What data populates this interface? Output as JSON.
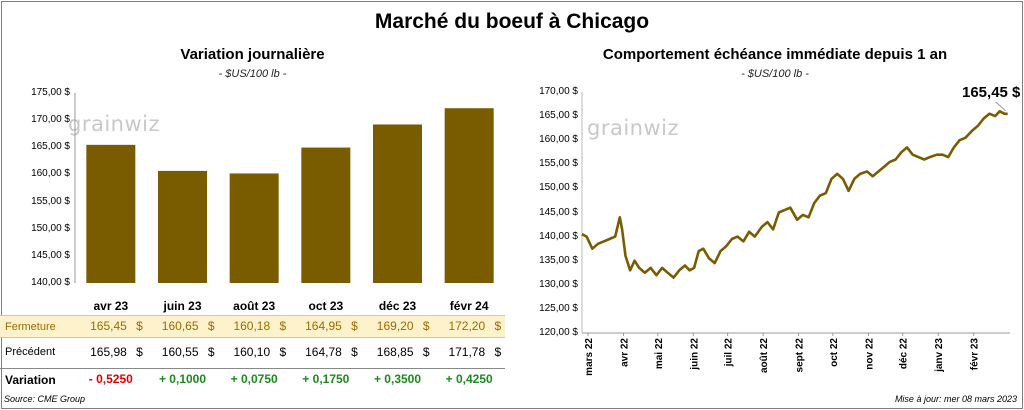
{
  "title": "Marché du boeuf à Chicago",
  "watermark": "grainwiz",
  "left": {
    "subtitle": "Variation  journalière",
    "unit": "- $US/100 lb -",
    "row_labels": {
      "close": "Fermeture",
      "prev": "Précédent",
      "change": "Variation"
    },
    "currency": "$",
    "table": {
      "close": [
        "165,45",
        "160,65",
        "160,18",
        "164,95",
        "169,20",
        "172,20"
      ],
      "prev": [
        "165,98",
        "160,55",
        "160,10",
        "164,78",
        "168,85",
        "171,78"
      ],
      "change": [
        "- 0,5250",
        "+ 0,1000",
        "+ 0,0750",
        "+ 0,1750",
        "+ 0,3500",
        "+ 0,4250"
      ]
    },
    "source": "Source: CME Group"
  },
  "right": {
    "subtitle": "Comportement  échéance immédiate depuis 1 an",
    "unit": "- $US/100 lb -",
    "last_value_label": "165,45 $",
    "update": "Mise à jour: mer 08 mars 2023"
  },
  "colors": {
    "bar": "#7a5c00",
    "line": "#7a5c00",
    "highlight_row": "#fdf2cc",
    "negative": "#e00000",
    "positive": "#1a8a1a"
  },
  "chart_data": [
    {
      "type": "bar",
      "title": "Variation  journalière",
      "categories": [
        "avr 23",
        "juin 23",
        "août 23",
        "oct 23",
        "déc 23",
        "févr 24"
      ],
      "values": [
        165.45,
        160.65,
        160.18,
        164.95,
        169.2,
        172.2
      ],
      "ylim": [
        140,
        175
      ],
      "yticks": [
        "140,00 $",
        "145,00 $",
        "150,00 $",
        "155,00 $",
        "160,00 $",
        "165,00 $",
        "170,00 $",
        "175,00 $"
      ]
    },
    {
      "type": "line",
      "title": "Comportement  échéance immédiate depuis 1 an",
      "ylim": [
        120,
        170
      ],
      "yticks": [
        "120,00 $",
        "125,00 $",
        "130,00 $",
        "135,00 $",
        "140,00 $",
        "145,00 $",
        "150,00 $",
        "155,00 $",
        "160,00 $",
        "165,00 $",
        "170,00 $"
      ],
      "xticks": [
        "mars 22",
        "avr 22",
        "mai 22",
        "juin 22",
        "juil 22",
        "août 22",
        "sept 22",
        "oct 22",
        "nov 22",
        "déc 22",
        "janv 23",
        "févr 23"
      ],
      "x": [
        "2022-03-01",
        "2022-03-05",
        "2022-03-10",
        "2022-03-15",
        "2022-03-20",
        "2022-03-25",
        "2022-03-30",
        "2022-04-03",
        "2022-04-05",
        "2022-04-08",
        "2022-04-12",
        "2022-04-16",
        "2022-04-20",
        "2022-04-25",
        "2022-04-30",
        "2022-05-05",
        "2022-05-10",
        "2022-05-15",
        "2022-05-20",
        "2022-05-25",
        "2022-05-30",
        "2022-06-03",
        "2022-06-07",
        "2022-06-11",
        "2022-06-15",
        "2022-06-20",
        "2022-06-25",
        "2022-06-30",
        "2022-07-05",
        "2022-07-10",
        "2022-07-15",
        "2022-07-20",
        "2022-07-25",
        "2022-07-30",
        "2022-08-05",
        "2022-08-10",
        "2022-08-15",
        "2022-08-20",
        "2022-08-25",
        "2022-08-30",
        "2022-09-05",
        "2022-09-10",
        "2022-09-15",
        "2022-09-20",
        "2022-09-25",
        "2022-09-30",
        "2022-10-05",
        "2022-10-10",
        "2022-10-15",
        "2022-10-20",
        "2022-10-25",
        "2022-10-30",
        "2022-11-05",
        "2022-11-10",
        "2022-11-15",
        "2022-11-20",
        "2022-11-25",
        "2022-11-30",
        "2022-12-05",
        "2022-12-10",
        "2022-12-15",
        "2022-12-20",
        "2022-12-25",
        "2022-12-30",
        "2023-01-05",
        "2023-01-10",
        "2023-01-15",
        "2023-01-20",
        "2023-01-25",
        "2023-01-30",
        "2023-02-05",
        "2023-02-10",
        "2023-02-15",
        "2023-02-20",
        "2023-02-25",
        "2023-03-01",
        "2023-03-05",
        "2023-03-08"
      ],
      "y": [
        140.5,
        140.0,
        137.5,
        138.5,
        139.0,
        139.5,
        140.0,
        144.0,
        141.5,
        136.0,
        133.0,
        135.0,
        133.5,
        132.5,
        133.5,
        132.0,
        133.5,
        132.5,
        131.5,
        133.0,
        134.0,
        133.0,
        133.5,
        137.0,
        137.5,
        135.5,
        134.5,
        137.0,
        138.0,
        139.5,
        140.0,
        139.0,
        141.0,
        140.0,
        142.0,
        143.0,
        141.5,
        145.0,
        145.5,
        146.0,
        143.5,
        144.5,
        144.0,
        147.0,
        148.5,
        149.0,
        152.0,
        153.0,
        152.0,
        149.5,
        152.0,
        153.0,
        153.5,
        152.5,
        153.5,
        154.5,
        155.5,
        156.0,
        157.5,
        158.5,
        157.0,
        156.5,
        156.0,
        156.5,
        157.0,
        157.0,
        156.5,
        158.5,
        160.0,
        160.5,
        162.0,
        163.0,
        164.5,
        165.5,
        165.0,
        166.0,
        165.5,
        165.45
      ]
    }
  ]
}
